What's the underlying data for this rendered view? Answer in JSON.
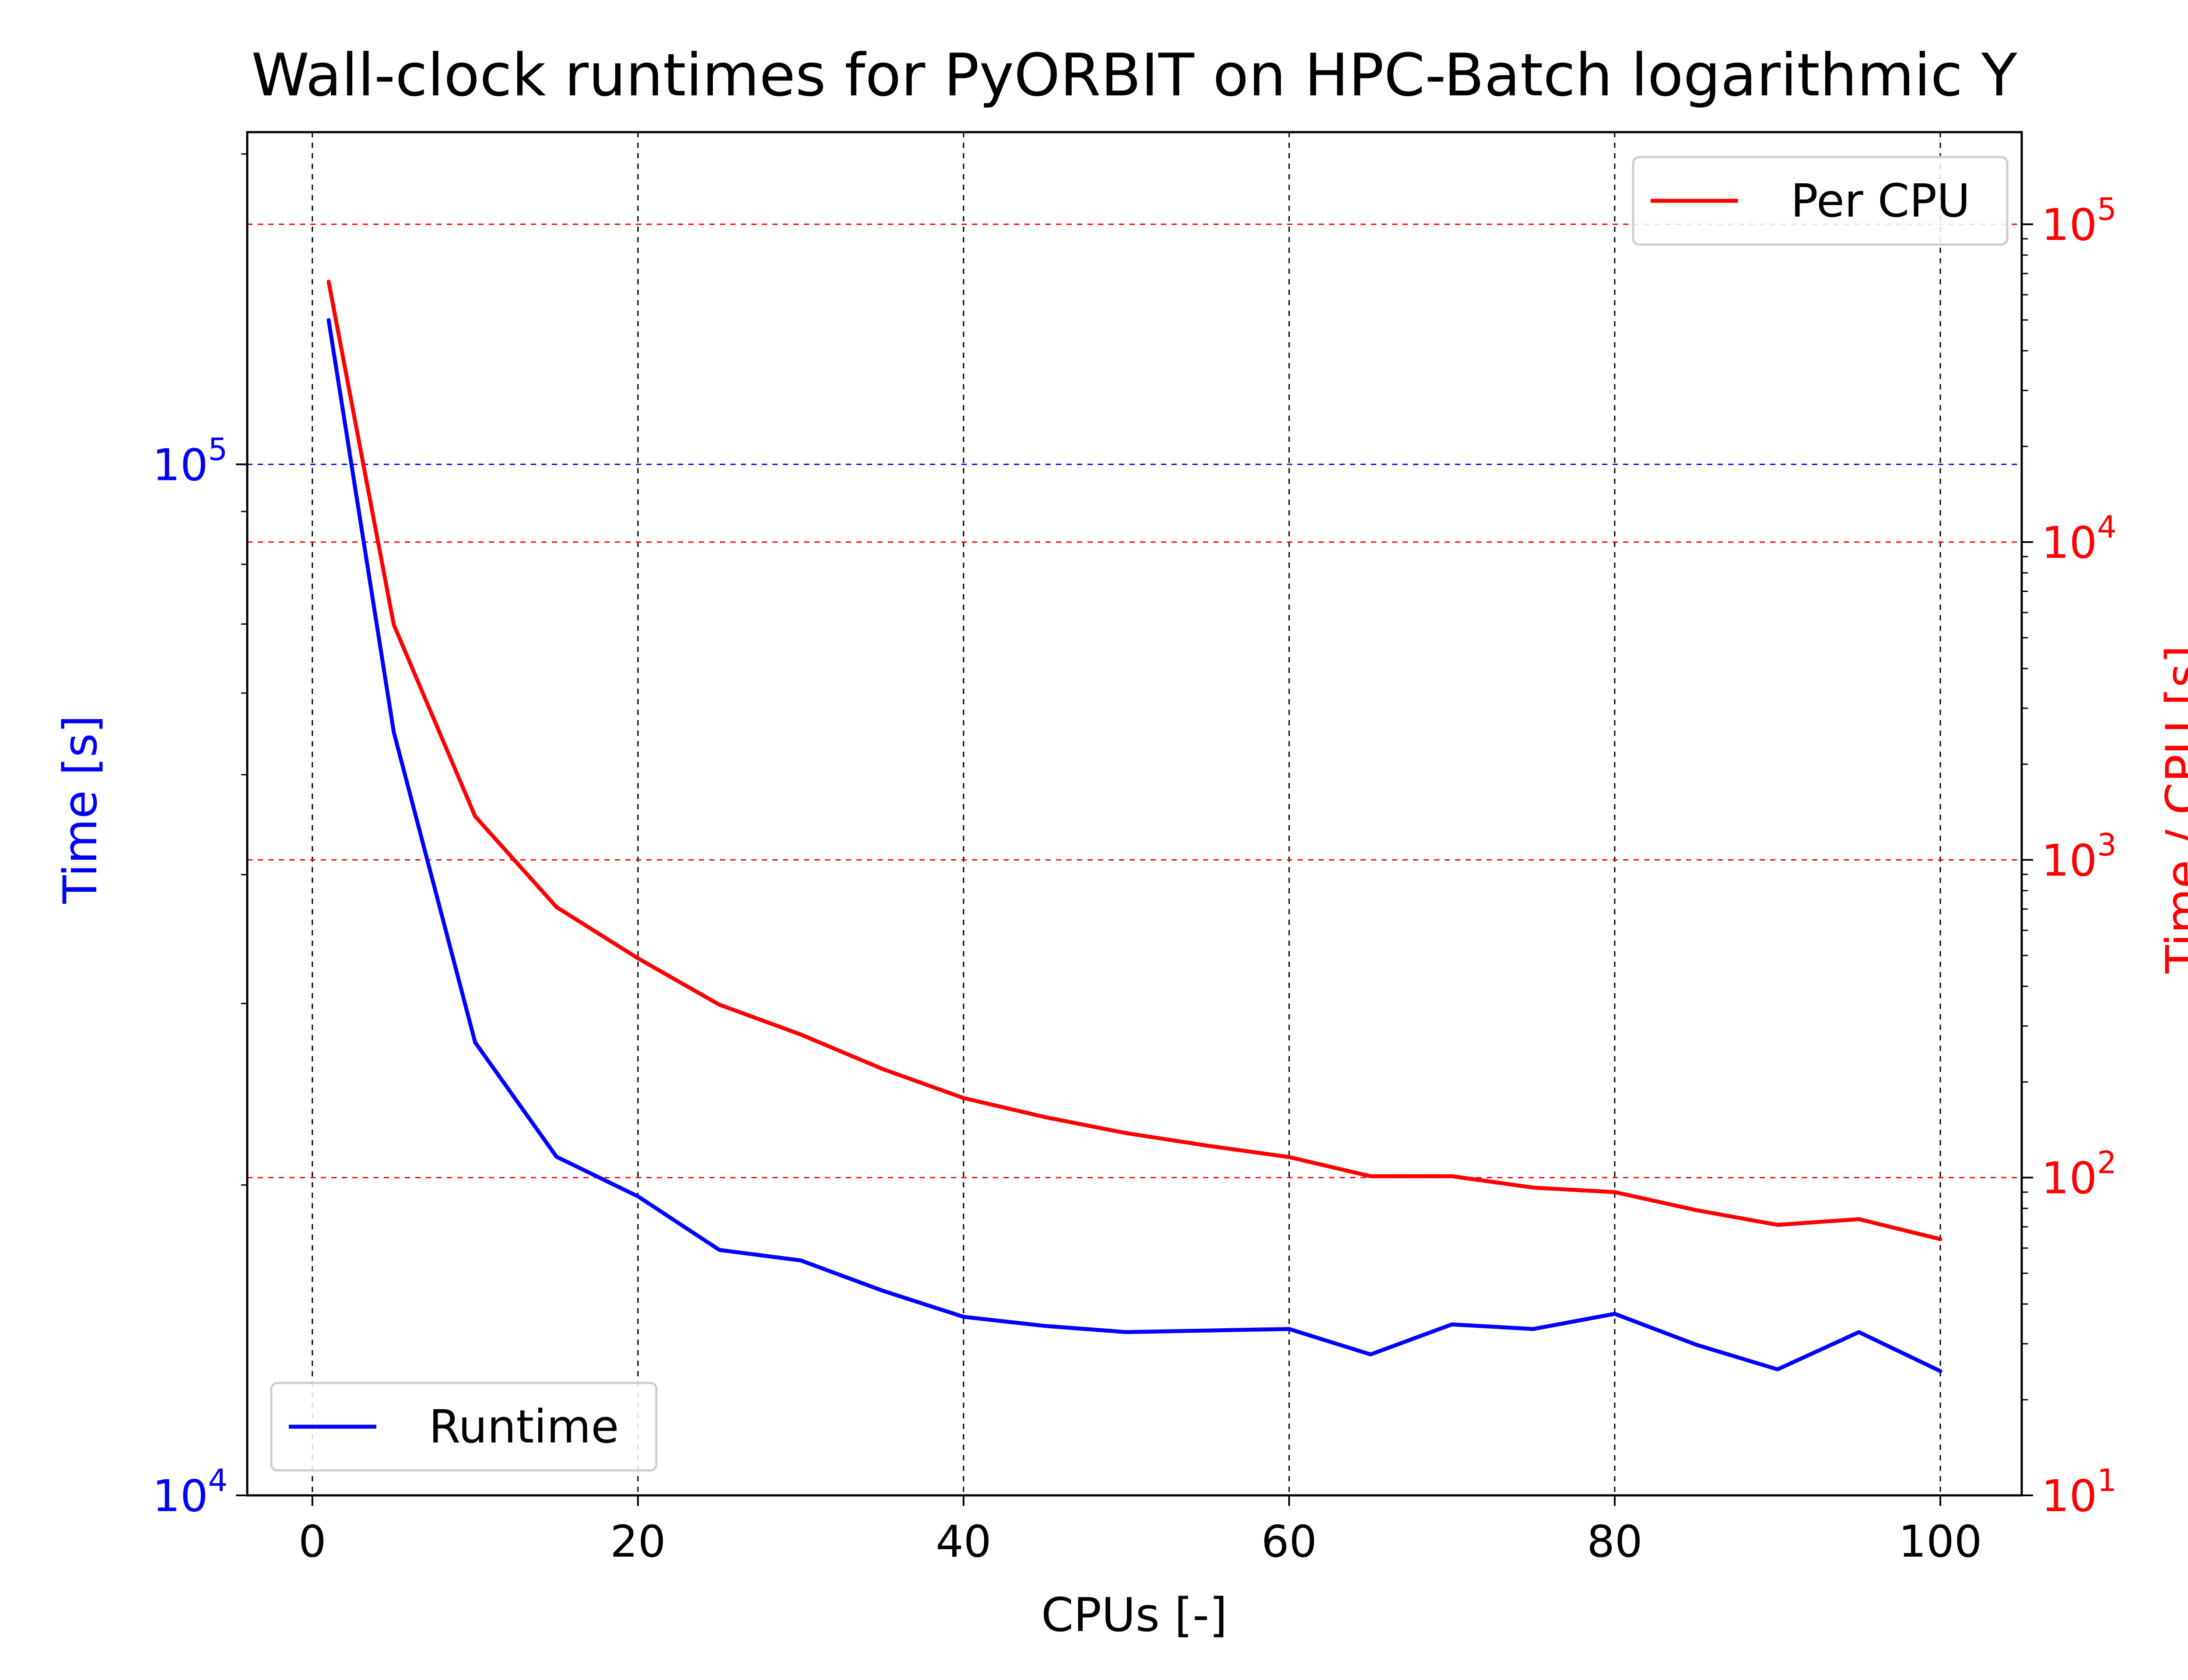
{
  "chart_data": {
    "type": "line",
    "title": "Wall-clock runtimes for PyORBIT on HPC-Batch logarithmic Y",
    "xlabel": "CPUs [-]",
    "ylabel": "Time [s]",
    "ylabel_right": "Time / CPU [s]",
    "xlim": [
      -4,
      105
    ],
    "ylim": [
      10000,
      210000
    ],
    "ylim_right": [
      10,
      195000
    ],
    "y_scale": "log",
    "y_right_scale": "log",
    "grid": true,
    "x_ticks": [
      "0",
      "20",
      "40",
      "60",
      "80",
      "100"
    ],
    "x_tick_values": [
      0,
      20,
      40,
      60,
      80,
      100
    ],
    "y_ticks": [
      {
        "base": "10",
        "exp": "4",
        "value": 10000
      },
      {
        "base": "10",
        "exp": "5",
        "value": 100000
      }
    ],
    "y_right_ticks": [
      {
        "base": "10",
        "exp": "1",
        "value": 10
      },
      {
        "base": "10",
        "exp": "2",
        "value": 100
      },
      {
        "base": "10",
        "exp": "3",
        "value": 1000
      },
      {
        "base": "10",
        "exp": "4",
        "value": 10000
      },
      {
        "base": "10",
        "exp": "5",
        "value": 100000
      }
    ],
    "x": [
      1,
      5,
      10,
      15,
      20,
      25,
      30,
      35,
      40,
      45,
      50,
      55,
      60,
      65,
      70,
      75,
      80,
      85,
      90,
      95,
      100
    ],
    "series": [
      {
        "name": "Runtime",
        "axis": "left",
        "color": "#0000ff",
        "legend": "bottom-left",
        "values": [
          138000,
          55000,
          27500,
          21300,
          19500,
          17300,
          16900,
          15800,
          14900,
          14600,
          14400,
          14450,
          14500,
          13700,
          14650,
          14500,
          15000,
          14000,
          13250,
          14400,
          13200
        ]
      },
      {
        "name": "Per CPU",
        "axis": "right",
        "color": "#ff0000",
        "legend": "top-right",
        "values": [
          66000,
          5500,
          1370,
          710,
          490,
          350,
          282,
          220,
          178,
          155,
          138,
          126,
          116,
          101,
          101,
          93,
          90,
          79,
          71,
          74,
          64
        ]
      }
    ]
  }
}
